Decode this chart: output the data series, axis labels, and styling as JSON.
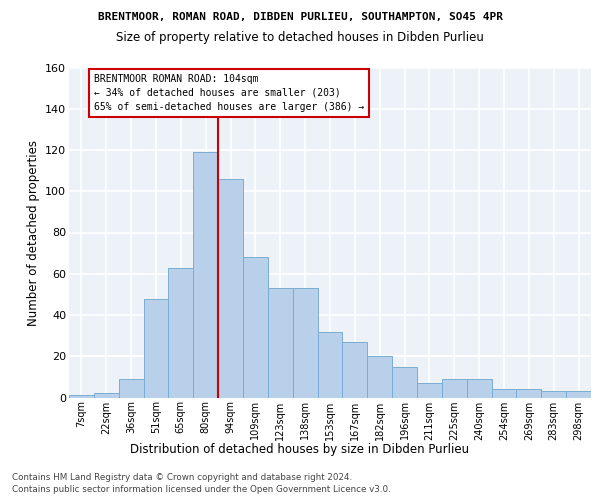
{
  "title1": "BRENTMOOR, ROMAN ROAD, DIBDEN PURLIEU, SOUTHAMPTON, SO45 4PR",
  "title2": "Size of property relative to detached houses in Dibden Purlieu",
  "xlabel": "Distribution of detached houses by size in Dibden Purlieu",
  "ylabel": "Number of detached properties",
  "categories": [
    "7sqm",
    "22sqm",
    "36sqm",
    "51sqm",
    "65sqm",
    "80sqm",
    "94sqm",
    "109sqm",
    "123sqm",
    "138sqm",
    "153sqm",
    "167sqm",
    "182sqm",
    "196sqm",
    "211sqm",
    "225sqm",
    "240sqm",
    "254sqm",
    "269sqm",
    "283sqm",
    "298sqm"
  ],
  "values": [
    1,
    2,
    9,
    48,
    63,
    119,
    106,
    68,
    53,
    53,
    32,
    27,
    20,
    15,
    7,
    9,
    9,
    4,
    4,
    3,
    3
  ],
  "bar_color": "#b8d0ea",
  "bar_edge_color": "#7aadd4",
  "ylim": [
    0,
    160
  ],
  "yticks": [
    0,
    20,
    40,
    60,
    80,
    100,
    120,
    140,
    160
  ],
  "vline_index": 5.5,
  "annotation_title": "BRENTMOOR ROMAN ROAD: 104sqm",
  "annotation_line1": "← 34% of detached houses are smaller (203)",
  "annotation_line2": "65% of semi-detached houses are larger (386) →",
  "vline_color": "#cc0000",
  "footer1": "Contains HM Land Registry data © Crown copyright and database right 2024.",
  "footer2": "Contains public sector information licensed under the Open Government Licence v3.0.",
  "bg_color": "#edf2f9",
  "grid_color": "#ffffff"
}
